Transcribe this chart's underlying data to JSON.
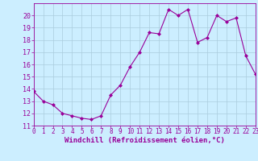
{
  "x": [
    0,
    1,
    2,
    3,
    4,
    5,
    6,
    7,
    8,
    9,
    10,
    11,
    12,
    13,
    14,
    15,
    16,
    17,
    18,
    19,
    20,
    21,
    22,
    23
  ],
  "y": [
    13.8,
    13.0,
    12.7,
    12.0,
    11.8,
    11.6,
    11.5,
    11.8,
    13.5,
    14.3,
    15.8,
    17.0,
    18.6,
    18.5,
    20.5,
    20.0,
    20.5,
    17.8,
    18.2,
    20.0,
    19.5,
    19.8,
    16.7,
    15.2
  ],
  "ylim": [
    11,
    21
  ],
  "xlim": [
    0,
    23
  ],
  "yticks": [
    11,
    12,
    13,
    14,
    15,
    16,
    17,
    18,
    19,
    20
  ],
  "xticks": [
    0,
    1,
    2,
    3,
    4,
    5,
    6,
    7,
    8,
    9,
    10,
    11,
    12,
    13,
    14,
    15,
    16,
    17,
    18,
    19,
    20,
    21,
    22,
    23
  ],
  "xlabel": "Windchill (Refroidissement éolien,°C)",
  "line_color": "#990099",
  "marker": "D",
  "marker_size": 2.0,
  "bg_color": "#cceeff",
  "grid_color": "#aaccdd",
  "tick_color": "#990099",
  "label_color": "#990099",
  "font_name": "monospace",
  "xlabel_fontsize": 6.5,
  "ytick_fontsize": 6,
  "xtick_fontsize": 5.5
}
